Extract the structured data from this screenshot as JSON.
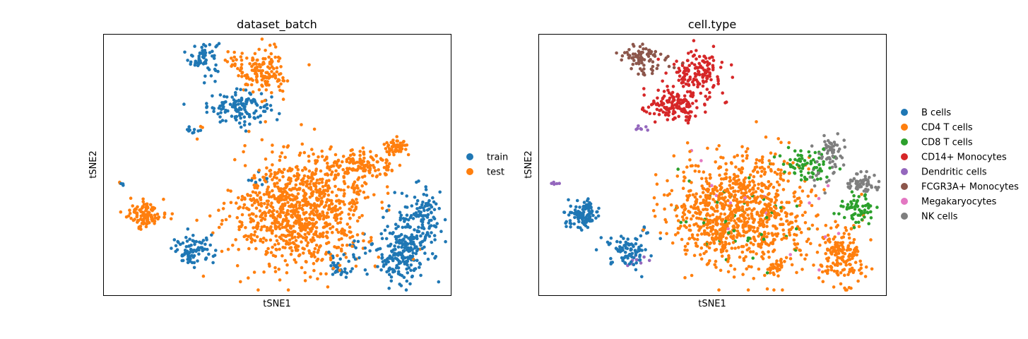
{
  "chart_data": [
    {
      "type": "scatter",
      "title": "dataset_batch",
      "xlabel": "tSNE1",
      "ylabel": "tSNE2",
      "xlim": [
        0,
        100
      ],
      "ylim": [
        0,
        100
      ],
      "ticks": false,
      "grid": false,
      "legend_position": "right",
      "series": [
        {
          "name": "train",
          "color": "#1f77b4",
          "clusters": [
            {
              "cx": 29,
              "cy": 91,
              "sx": 2.2,
              "sy": 3.4,
              "n": 60
            },
            {
              "cx": 39,
              "cy": 72,
              "sx": 4.5,
              "sy": 3.0,
              "n": 130
            },
            {
              "cx": 27,
              "cy": 63,
              "sx": 2.0,
              "sy": 0.8,
              "n": 10
            },
            {
              "cx": 5.3,
              "cy": 42,
              "sx": 0.4,
              "sy": 0.4,
              "n": 3
            },
            {
              "cx": 26,
              "cy": 17,
              "sx": 3.0,
              "sy": 2.8,
              "n": 85
            },
            {
              "cx": 68,
              "cy": 11,
              "sx": 1.6,
              "sy": 2.0,
              "n": 30
            },
            {
              "cx": 86,
              "cy": 15,
              "sx": 3.5,
              "sy": 5.5,
              "n": 180
            },
            {
              "cx": 92,
              "cy": 32,
              "sx": 2.8,
              "sy": 5.5,
              "n": 90
            },
            {
              "cx": 88,
              "cy": 25,
              "sx": 3.5,
              "sy": 5.0,
              "n": 55
            },
            {
              "cx": 74,
              "cy": 18,
              "sx": 3.0,
              "sy": 4.0,
              "n": 20
            },
            {
              "cx": 45,
              "cy": 44,
              "sx": 2.5,
              "sy": 2.0,
              "n": 8
            }
          ]
        },
        {
          "name": "test",
          "color": "#ff7f0e",
          "clusters": [
            {
              "cx": 57,
              "cy": 32,
              "sx": 9.5,
              "sy": 10.5,
              "n": 950
            },
            {
              "cx": 75,
              "cy": 50,
              "sx": 5.0,
              "sy": 3.8,
              "n": 130
            },
            {
              "cx": 84,
              "cy": 57,
              "sx": 1.5,
              "sy": 1.3,
              "n": 50
            },
            {
              "cx": 46,
              "cy": 85,
              "sx": 3.5,
              "sy": 4.5,
              "n": 130
            },
            {
              "cx": 38,
              "cy": 89,
              "sx": 2.0,
              "sy": 2.0,
              "n": 20
            },
            {
              "cx": 12,
              "cy": 31,
              "sx": 2.3,
              "sy": 2.5,
              "n": 110
            },
            {
              "cx": 4.8,
              "cy": 43,
              "sx": 0.3,
              "sy": 0.3,
              "n": 2
            },
            {
              "cx": 29,
              "cy": 64,
              "sx": 0.5,
              "sy": 0.5,
              "n": 2
            }
          ]
        }
      ]
    },
    {
      "type": "scatter",
      "title": "cell.type",
      "xlabel": "tSNE1",
      "ylabel": "tSNE2",
      "xlim": [
        0,
        100
      ],
      "ylim": [
        0,
        100
      ],
      "ticks": false,
      "grid": false,
      "legend_position": "right",
      "series": [
        {
          "name": "B cells",
          "color": "#1f77b4",
          "clusters": [
            {
              "cx": 13,
              "cy": 31,
              "sx": 2.3,
              "sy": 2.5,
              "n": 110
            },
            {
              "cx": 26,
              "cy": 17,
              "sx": 3.0,
              "sy": 2.8,
              "n": 85
            },
            {
              "cx": 31,
              "cy": 25,
              "sx": 0.8,
              "sy": 1.5,
              "n": 6
            }
          ]
        },
        {
          "name": "CD4 T cells",
          "color": "#ff7f0e",
          "clusters": [
            {
              "cx": 57,
              "cy": 32,
              "sx": 9.5,
              "sy": 10.5,
              "n": 900
            },
            {
              "cx": 87,
              "cy": 15,
              "sx": 3.2,
              "sy": 6.0,
              "n": 170
            },
            {
              "cx": 68,
              "cy": 10,
              "sx": 1.5,
              "sy": 1.8,
              "n": 30
            },
            {
              "cx": 75,
              "cy": 22,
              "sx": 3.5,
              "sy": 5.0,
              "n": 30
            }
          ]
        },
        {
          "name": "CD8 T cells",
          "color": "#2ca02c",
          "clusters": [
            {
              "cx": 77,
              "cy": 50,
              "sx": 3.5,
              "sy": 3.5,
              "n": 70
            },
            {
              "cx": 92,
              "cy": 33,
              "sx": 2.6,
              "sy": 3.2,
              "n": 60
            },
            {
              "cx": 60,
              "cy": 30,
              "sx": 10.0,
              "sy": 10.0,
              "n": 45
            }
          ]
        },
        {
          "name": "CD14+ Monocytes",
          "color": "#d62728",
          "clusters": [
            {
              "cx": 39,
              "cy": 73,
              "sx": 5.0,
              "sy": 3.2,
              "n": 150
            },
            {
              "cx": 46,
              "cy": 85,
              "sx": 3.5,
              "sy": 4.5,
              "n": 140
            }
          ]
        },
        {
          "name": "Dendritic cells",
          "color": "#9467bd",
          "clusters": [
            {
              "cx": 5,
              "cy": 43,
              "sx": 0.5,
              "sy": 0.5,
              "n": 5
            },
            {
              "cx": 29,
              "cy": 64,
              "sx": 1.2,
              "sy": 0.6,
              "n": 7
            },
            {
              "cx": 29,
              "cy": 13,
              "sx": 2.0,
              "sy": 1.2,
              "n": 8
            }
          ]
        },
        {
          "name": "FCGR3A+ Monocytes",
          "color": "#8c564b",
          "clusters": [
            {
              "cx": 29,
              "cy": 92,
              "sx": 2.5,
              "sy": 1.8,
              "n": 55
            },
            {
              "cx": 30,
              "cy": 86,
              "sx": 1.2,
              "sy": 2.0,
              "n": 15
            },
            {
              "cx": 36,
              "cy": 89,
              "sx": 2.0,
              "sy": 1.8,
              "n": 12
            }
          ]
        },
        {
          "name": "Megakaryocytes",
          "color": "#e377c2",
          "clusters": [
            {
              "cx": 45,
              "cy": 52,
              "sx": 1.5,
              "sy": 3.0,
              "n": 2
            },
            {
              "cx": 58,
              "cy": 35,
              "sx": 6.0,
              "sy": 8.0,
              "n": 8
            },
            {
              "cx": 80,
              "cy": 28,
              "sx": 5.0,
              "sy": 12.0,
              "n": 8
            }
          ]
        },
        {
          "name": "NK cells",
          "color": "#7f7f7f",
          "clusters": [
            {
              "cx": 84,
              "cy": 55,
              "sx": 2.0,
              "sy": 3.0,
              "n": 60
            },
            {
              "cx": 93,
              "cy": 43,
              "sx": 2.2,
              "sy": 1.8,
              "n": 55
            },
            {
              "cx": 82,
              "cy": 45,
              "sx": 2.0,
              "sy": 2.5,
              "n": 12
            }
          ]
        }
      ]
    }
  ]
}
